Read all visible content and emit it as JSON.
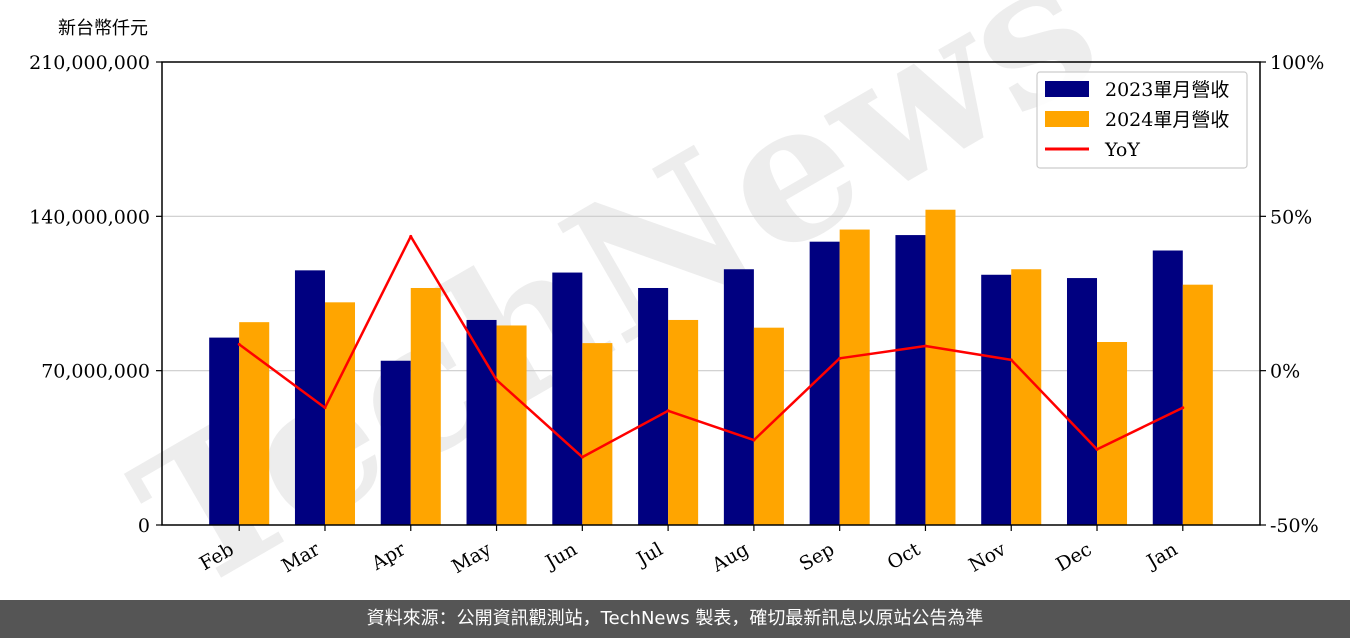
{
  "chart_data": {
    "type": "bar",
    "unit_label": "新台幣仟元",
    "categories": [
      "Feb",
      "Mar",
      "Apr",
      "May",
      "Jun",
      "Jul",
      "Aug",
      "Sep",
      "Oct",
      "Nov",
      "Dec",
      "Jan"
    ],
    "series": [
      {
        "name": "2023單月營收",
        "kind": "bar",
        "axis": "left",
        "color": "#000080",
        "values": [
          85000000,
          115500000,
          74500000,
          93000000,
          114500000,
          107500000,
          116000000,
          128500000,
          131500000,
          113500000,
          112000000,
          124500000
        ]
      },
      {
        "name": "2024單月營收",
        "kind": "bar",
        "axis": "left",
        "color": "#FFA500",
        "values": [
          92000000,
          101000000,
          107500000,
          90500000,
          82500000,
          93000000,
          89500000,
          134000000,
          143000000,
          116000000,
          83000000,
          109000000
        ]
      },
      {
        "name": "YoY",
        "kind": "line",
        "axis": "right",
        "color": "#FF0000",
        "values": [
          8.5,
          -12,
          43.5,
          -3,
          -28,
          -13,
          -22.5,
          4,
          8,
          3.5,
          -25.5,
          -12
        ]
      }
    ],
    "y_left": {
      "lim": [
        0,
        210000000
      ],
      "ticks": [
        "0",
        "70,000,000",
        "140,000,000",
        "210,000,000"
      ]
    },
    "y_right": {
      "lim": [
        -50,
        100
      ],
      "ticks": [
        "-50%",
        "0%",
        "50%",
        "100%"
      ]
    },
    "grid": "horizontal",
    "legend_position": "top-right"
  },
  "watermark": "TechNews",
  "footer": {
    "text": "資料來源：公開資訊觀測站，TechNews 製表，確切最新訊息以原站公告為準"
  }
}
